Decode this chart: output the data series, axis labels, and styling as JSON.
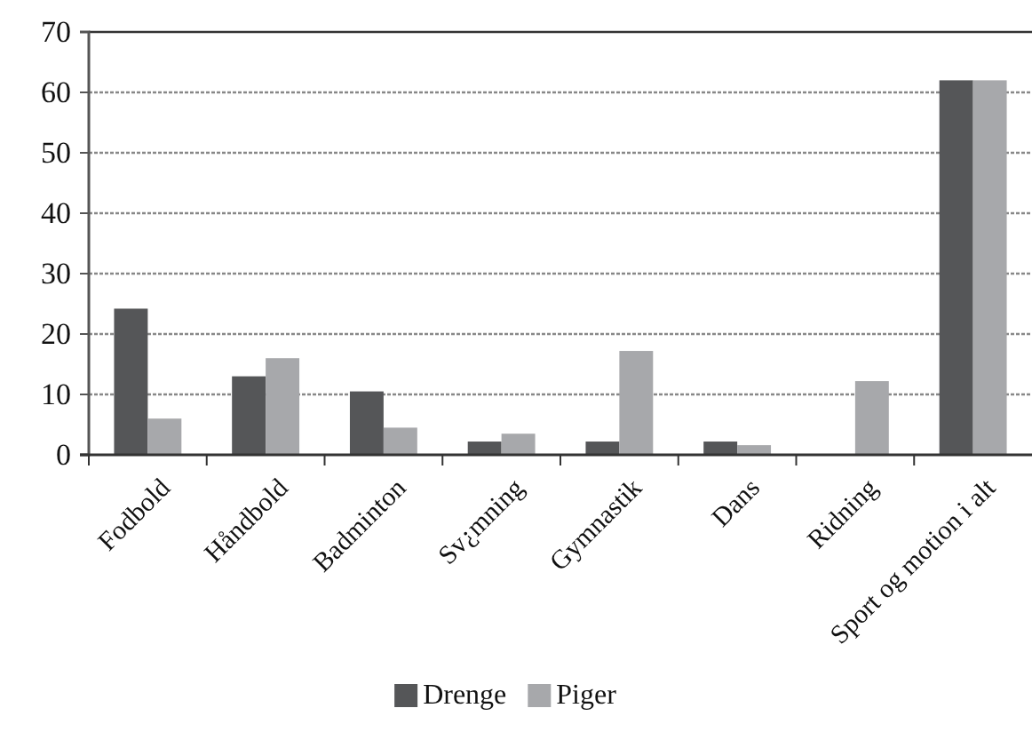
{
  "chart_data": {
    "type": "bar",
    "categories": [
      "Fodbold",
      "Håndbold",
      "Badminton",
      "Sv¿mning",
      "Gymnastik",
      "Dans",
      "Ridning",
      "Sport og motion  i alt"
    ],
    "series": [
      {
        "name": "Drenge",
        "color": "#555658",
        "values": [
          24.2,
          13,
          10.5,
          2.2,
          2.2,
          2.2,
          0,
          62
        ]
      },
      {
        "name": "Piger",
        "color": "#a7a8ab",
        "values": [
          6,
          16,
          4.5,
          3.5,
          17.2,
          1.6,
          12.2,
          62
        ]
      }
    ],
    "ylim": [
      0,
      70
    ],
    "yticks": [
      0,
      10,
      20,
      30,
      40,
      50,
      60,
      70
    ],
    "grid": "y",
    "legend": "bottom"
  }
}
